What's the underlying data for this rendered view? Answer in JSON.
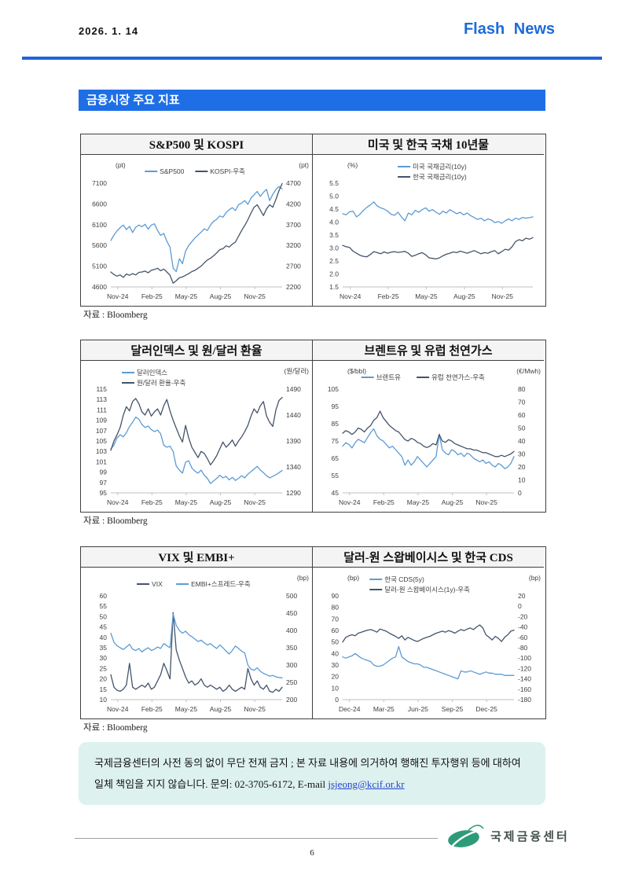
{
  "header": {
    "date": "2026. 1. 14",
    "brand": "Flash News"
  },
  "section_title": "금융시장 주요 지표",
  "source_label": "자료 : Bloomberg",
  "colors": {
    "accent_blue": "#1e6fe6",
    "series_blue": "#5B9BD5",
    "series_navy": "#44546A"
  },
  "footer": {
    "line1": "국제금융센터의 사전 동의 없이 무단 전재 금지 ; 본 자료 내용에 의거하여 행해진 투자행위",
    "line2_prefix": "등에 대하여 일체 책임을 지지 않습니다. 문의: 02-3705-6172, E-mail ",
    "email": "jsjeong@kcif.or.kr"
  },
  "logo_text": "국제금융센터",
  "page_number": "6",
  "chart_data": [
    {
      "type": "line",
      "title": "S&P500 및 KOSPI",
      "unit_left": "(pt)",
      "unit_right": "(pt)",
      "left_ticks": [
        "7100",
        "6600",
        "6100",
        "5600",
        "5100",
        "4600"
      ],
      "right_ticks": [
        "4700",
        "4200",
        "3700",
        "3200",
        "2700",
        "2200"
      ],
      "x_labels": [
        "Nov-24",
        "Feb-25",
        "May-25",
        "Aug-25",
        "Nov-25"
      ],
      "legend": "row",
      "legend_align": "center",
      "series": [
        {
          "name": "S&P500",
          "color": "#5B9BD5",
          "axis": "left",
          "values": [
            5720,
            5850,
            5950,
            6030,
            6090,
            5980,
            6060,
            5910,
            6040,
            6090,
            6050,
            6110,
            5990,
            6090,
            6120,
            5960,
            5840,
            5890,
            5700,
            5560,
            5050,
            4970,
            5280,
            5160,
            5460,
            5600,
            5690,
            5780,
            5850,
            5920,
            6000,
            5960,
            6090,
            6180,
            6230,
            6310,
            6280,
            6390,
            6460,
            6510,
            6440,
            6580,
            6620,
            6680,
            6590,
            6740,
            6820,
            6900,
            6780,
            6880,
            6950,
            6680,
            6830,
            6950,
            7020,
            6960
          ]
        },
        {
          "name": "KOSPI-우축",
          "color": "#44546A",
          "axis": "right",
          "values": [
            2560,
            2500,
            2460,
            2490,
            2430,
            2510,
            2480,
            2520,
            2490,
            2550,
            2560,
            2580,
            2540,
            2600,
            2620,
            2650,
            2590,
            2630,
            2560,
            2480,
            2290,
            2350,
            2420,
            2440,
            2480,
            2520,
            2570,
            2600,
            2650,
            2700,
            2780,
            2850,
            2890,
            2950,
            3020,
            3100,
            3120,
            3190,
            3160,
            3230,
            3280,
            3420,
            3560,
            3680,
            3820,
            3980,
            4120,
            4180,
            4050,
            3920,
            4080,
            4180,
            4120,
            4310,
            4520,
            4690
          ]
        }
      ]
    },
    {
      "type": "line",
      "title": "미국 및 한국 국채 10년물",
      "unit_left": "(%)",
      "unit_right": null,
      "left_ticks": [
        "5.5",
        "5.0",
        "4.5",
        "4.0",
        "3.5",
        "3.0",
        "2.5",
        "2.0",
        "1.5"
      ],
      "right_ticks": null,
      "x_labels": [
        "Nov-24",
        "Feb-25",
        "May-25",
        "Aug-25",
        "Nov-25"
      ],
      "legend": "stack",
      "legend_align": "center",
      "series": [
        {
          "name": "미국 국채금리(10y)",
          "color": "#5B9BD5",
          "axis": "left",
          "values": [
            4.32,
            4.28,
            4.4,
            4.42,
            4.2,
            4.3,
            4.45,
            4.57,
            4.66,
            4.78,
            4.62,
            4.55,
            4.5,
            4.42,
            4.3,
            4.26,
            4.38,
            4.2,
            4.05,
            4.35,
            4.28,
            4.45,
            4.38,
            4.48,
            4.55,
            4.42,
            4.48,
            4.38,
            4.3,
            4.42,
            4.35,
            4.48,
            4.4,
            4.32,
            4.38,
            4.28,
            4.35,
            4.25,
            4.18,
            4.1,
            4.15,
            4.05,
            4.12,
            4.08,
            3.98,
            4.02,
            3.95,
            4.05,
            4.12,
            4.05,
            4.15,
            4.1,
            4.18,
            4.15,
            4.17,
            4.2
          ]
        },
        {
          "name": "한국 국채금리(10y)",
          "color": "#44546A",
          "axis": "left",
          "values": [
            3.1,
            3.05,
            3.02,
            2.88,
            2.8,
            2.72,
            2.68,
            2.66,
            2.75,
            2.86,
            2.82,
            2.78,
            2.85,
            2.8,
            2.84,
            2.86,
            2.83,
            2.85,
            2.87,
            2.8,
            2.68,
            2.72,
            2.78,
            2.82,
            2.74,
            2.62,
            2.6,
            2.58,
            2.62,
            2.7,
            2.76,
            2.8,
            2.85,
            2.82,
            2.88,
            2.84,
            2.8,
            2.85,
            2.9,
            2.84,
            2.78,
            2.82,
            2.8,
            2.86,
            2.9,
            2.78,
            2.86,
            2.95,
            2.92,
            3.05,
            3.25,
            3.32,
            3.28,
            3.38,
            3.34,
            3.4
          ]
        }
      ]
    },
    {
      "type": "line",
      "title": "달러인덱스 및 원/달러 환율",
      "unit_left": null,
      "unit_right": "(원/달러)",
      "left_ticks": [
        "115",
        "113",
        "111",
        "109",
        "107",
        "105",
        "103",
        "101",
        "99",
        "97",
        "95"
      ],
      "right_ticks": [
        "1490",
        "1440",
        "1390",
        "1340",
        "1290"
      ],
      "x_labels": [
        "Nov-24",
        "Feb-25",
        "May-25",
        "Aug-25",
        "Nov-25"
      ],
      "legend": "stack",
      "legend_align": "left",
      "series": [
        {
          "name": "달러인덱스",
          "color": "#5B9BD5",
          "axis": "left",
          "values": [
            103.5,
            104.2,
            105.6,
            106.2,
            105.8,
            106.6,
            107.8,
            108.6,
            109.6,
            109.2,
            108.2,
            107.6,
            107.9,
            107.2,
            106.8,
            107.1,
            106.4,
            104.2,
            103.8,
            104.0,
            103.0,
            100.2,
            99.4,
            98.8,
            100.9,
            101.2,
            99.8,
            99.2,
            98.8,
            99.4,
            98.4,
            97.8,
            96.8,
            97.3,
            97.8,
            98.4,
            97.9,
            98.2,
            97.5,
            98.0,
            97.4,
            97.8,
            98.3,
            97.9,
            98.6,
            99.1,
            99.6,
            100.1,
            99.4,
            98.9,
            98.3,
            97.9,
            98.2,
            98.5,
            98.9,
            99.3
          ]
        },
        {
          "name": "원/달러 환율-우축",
          "color": "#44546A",
          "axis": "right",
          "values": [
            1372,
            1390,
            1402,
            1416,
            1440,
            1456,
            1448,
            1466,
            1472,
            1462,
            1446,
            1440,
            1452,
            1438,
            1446,
            1452,
            1440,
            1458,
            1470,
            1448,
            1430,
            1415,
            1400,
            1388,
            1420,
            1396,
            1378,
            1368,
            1358,
            1370,
            1366,
            1356,
            1344,
            1352,
            1362,
            1375,
            1388,
            1378,
            1384,
            1392,
            1380,
            1390,
            1398,
            1408,
            1420,
            1438,
            1452,
            1444,
            1458,
            1466,
            1438,
            1426,
            1418,
            1450,
            1468,
            1474
          ]
        }
      ]
    },
    {
      "type": "line",
      "title": "브렌트유 및 유럽 천연가스",
      "unit_left": "($/bbl)",
      "unit_right": "(€/Mwh)",
      "left_ticks": [
        "105",
        "95",
        "85",
        "75",
        "65",
        "55",
        "45"
      ],
      "right_ticks": [
        "80",
        "70",
        "60",
        "50",
        "40",
        "30",
        "20",
        "10",
        "0"
      ],
      "x_labels": [
        "Nov-24",
        "Feb-25",
        "May-25",
        "Aug-25",
        "Nov-25"
      ],
      "legend": "row",
      "legend_align": "center",
      "series": [
        {
          "name": "브렌트유",
          "color": "#5B9BD5",
          "axis": "left",
          "values": [
            72,
            74,
            73,
            71,
            74,
            76,
            75,
            74,
            77,
            80,
            82,
            78,
            76,
            75,
            73,
            71,
            72,
            70,
            68,
            66,
            61,
            64,
            61,
            63,
            66,
            64,
            62,
            60,
            62,
            64,
            66,
            79,
            70,
            68,
            67,
            70,
            69,
            67,
            68,
            66,
            68,
            67,
            65,
            64,
            63,
            64,
            62,
            63,
            61,
            60,
            62,
            61,
            59,
            60,
            62,
            66
          ]
        },
        {
          "name": "유럽 천연가스-우축",
          "color": "#44546A",
          "axis": "right",
          "values": [
            46,
            48,
            47,
            45,
            47,
            50,
            49,
            47,
            50,
            52,
            56,
            58,
            63,
            58,
            55,
            52,
            50,
            48,
            47,
            44,
            41,
            40,
            42,
            41,
            39,
            38,
            36,
            35,
            36,
            38,
            37,
            45,
            40,
            39,
            41,
            40,
            38,
            37,
            36,
            35,
            34,
            34,
            33,
            33,
            32,
            31,
            31,
            30,
            29,
            28,
            28,
            29,
            28,
            29,
            30,
            32
          ]
        }
      ]
    },
    {
      "type": "line",
      "title": "VIX 및 EMBI+",
      "unit_left": null,
      "unit_right": "(bp)",
      "left_ticks": [
        "60",
        "55",
        "50",
        "45",
        "40",
        "35",
        "30",
        "25",
        "20",
        "15",
        "10"
      ],
      "right_ticks": [
        "500",
        "450",
        "400",
        "350",
        "300",
        "250",
        "200"
      ],
      "x_labels": [
        "Nov-24",
        "Feb-25",
        "May-25",
        "Aug-25",
        "Nov-25"
      ],
      "legend": "row",
      "legend_align": "center",
      "series": [
        {
          "name": "VIX",
          "color": "#44546A",
          "axis": "left",
          "values": [
            22,
            16,
            14.5,
            14,
            15,
            17,
            27.5,
            16,
            15,
            16,
            17,
            16,
            18,
            15,
            16,
            19,
            22,
            27.5,
            24,
            20,
            52,
            34,
            29,
            25,
            21,
            18,
            19,
            17,
            18,
            20,
            17,
            16,
            17,
            16,
            15,
            16,
            14,
            15,
            17,
            15,
            14,
            15,
            16,
            15,
            25,
            20,
            17,
            19,
            16,
            15,
            17,
            14,
            13.5,
            15,
            14,
            16
          ]
        },
        {
          "name": "EMBI+스프레드-우축",
          "color": "#5B9BD5",
          "axis": "right",
          "values": [
            392,
            366,
            356,
            350,
            345,
            352,
            360,
            346,
            342,
            348,
            338,
            345,
            350,
            342,
            346,
            352,
            348,
            362,
            356,
            350,
            448,
            415,
            400,
            392,
            398,
            388,
            382,
            375,
            368,
            372,
            364,
            358,
            362,
            354,
            348,
            358,
            350,
            340,
            332,
            342,
            355,
            348,
            340,
            335,
            300,
            288,
            285,
            292,
            282,
            276,
            272,
            268,
            270,
            266,
            264,
            263
          ]
        }
      ]
    },
    {
      "type": "line",
      "title": "달러-원 스왑베이시스 및 한국 CDS",
      "unit_left": "(bp)",
      "unit_right": "(bp)",
      "left_ticks": [
        "90",
        "80",
        "70",
        "60",
        "50",
        "40",
        "30",
        "20",
        "10",
        "0"
      ],
      "right_ticks": [
        "20",
        "0",
        "-20",
        "-40",
        "-60",
        "-80",
        "-100",
        "-120",
        "-140",
        "-160",
        "-180"
      ],
      "x_labels": [
        "Dec-24",
        "Mar-25",
        "Jun-25",
        "Sep-25",
        "Dec-25"
      ],
      "legend": "stack",
      "legend_align": "center",
      "series": [
        {
          "name": "한국 CDS(5y)",
          "color": "#5B9BD5",
          "axis": "left",
          "values": [
            37,
            36,
            37,
            38,
            40,
            38,
            36,
            35,
            34,
            33,
            30,
            29,
            29,
            30,
            32,
            34,
            36,
            37,
            46,
            37,
            35,
            33,
            32,
            31,
            31,
            30,
            28,
            28,
            27,
            26,
            25,
            24,
            23,
            22,
            21,
            20,
            19,
            18,
            25,
            24,
            24,
            25,
            24,
            23,
            22,
            23,
            24,
            23,
            23,
            22,
            22,
            22,
            21,
            21,
            21,
            21
          ]
        },
        {
          "name": "달러-원 스왑베이시스(1y)-우축",
          "color": "#44546A",
          "axis": "right",
          "values": [
            -69,
            -60,
            -57,
            -55,
            -57,
            -52,
            -50,
            -48,
            -46,
            -45,
            -47,
            -50,
            -44,
            -46,
            -48,
            -52,
            -55,
            -58,
            -62,
            -57,
            -65,
            -60,
            -63,
            -66,
            -68,
            -65,
            -62,
            -60,
            -58,
            -55,
            -52,
            -50,
            -48,
            -50,
            -47,
            -49,
            -52,
            -48,
            -45,
            -47,
            -44,
            -42,
            -45,
            -40,
            -36,
            -42,
            -55,
            -60,
            -65,
            -58,
            -62,
            -68,
            -60,
            -55,
            -48,
            -46
          ]
        }
      ]
    }
  ]
}
